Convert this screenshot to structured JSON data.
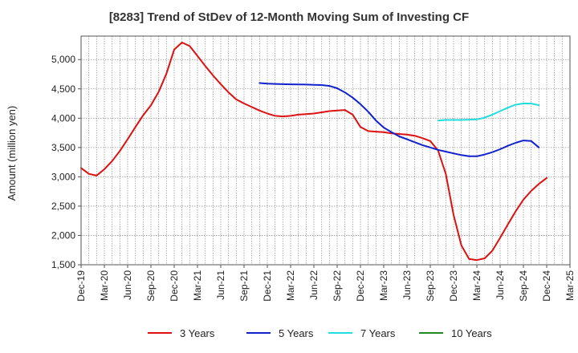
{
  "chart_data": {
    "type": "line",
    "title": "[8283]  Trend of StDev of 12-Month Moving Sum of Investing CF",
    "ylabel": "Amount (million yen)",
    "xlabel": "",
    "ylim": [
      1500,
      5400
    ],
    "y_ticks": [
      "1,500",
      "2,000",
      "2,500",
      "3,000",
      "3,500",
      "4,000",
      "4,500",
      "5,000"
    ],
    "y_tick_values": [
      1500,
      2000,
      2500,
      3000,
      3500,
      4000,
      4500,
      5000
    ],
    "x_ticks": [
      "Dec-19",
      "Mar-20",
      "Jun-20",
      "Sep-20",
      "Dec-20",
      "Mar-21",
      "Jun-21",
      "Sep-21",
      "Dec-21",
      "Mar-22",
      "Jun-22",
      "Sep-22",
      "Dec-22",
      "Mar-23",
      "Jun-23",
      "Sep-23",
      "Dec-23",
      "Mar-24",
      "Jun-24",
      "Sep-24",
      "Dec-24",
      "Mar-25"
    ],
    "grid": true,
    "legend_position": "bottom",
    "series": [
      {
        "name": "3 Years",
        "color": "#dd1111",
        "values": [
          3150,
          3050,
          3020,
          3130,
          3270,
          3440,
          3640,
          3850,
          4050,
          4220,
          4450,
          4760,
          5170,
          5290,
          5230,
          5060,
          4890,
          4730,
          4580,
          4440,
          4320,
          4250,
          4190,
          4130,
          4080,
          4040,
          4030,
          4040,
          4060,
          4070,
          4080,
          4100,
          4120,
          4130,
          4140,
          4060,
          3850,
          3780,
          3770,
          3760,
          3740,
          3730,
          3720,
          3700,
          3660,
          3610,
          3450,
          3050,
          2350,
          1830,
          1600,
          1580,
          1610,
          1740,
          1960,
          2190,
          2410,
          2610,
          2760,
          2880,
          2980
        ]
      },
      {
        "name": "5 Years",
        "color": "#1122cc",
        "values": [
          null,
          null,
          null,
          null,
          null,
          null,
          null,
          null,
          null,
          null,
          null,
          null,
          null,
          null,
          null,
          null,
          null,
          null,
          null,
          null,
          null,
          null,
          null,
          4600,
          4590,
          4585,
          4580,
          4578,
          4575,
          4573,
          4570,
          4565,
          4550,
          4510,
          4440,
          4350,
          4240,
          4110,
          3960,
          3840,
          3760,
          3690,
          3640,
          3590,
          3540,
          3500,
          3460,
          3430,
          3400,
          3370,
          3350,
          3350,
          3380,
          3420,
          3470,
          3530,
          3580,
          3620,
          3610,
          3500
        ]
      },
      {
        "name": "7 Years",
        "color": "#22dddd",
        "values": [
          null,
          null,
          null,
          null,
          null,
          null,
          null,
          null,
          null,
          null,
          null,
          null,
          null,
          null,
          null,
          null,
          null,
          null,
          null,
          null,
          null,
          null,
          null,
          null,
          null,
          null,
          null,
          null,
          null,
          null,
          null,
          null,
          null,
          null,
          null,
          null,
          null,
          null,
          null,
          null,
          null,
          null,
          null,
          null,
          null,
          null,
          3960,
          3970,
          3970,
          3970,
          3975,
          3980,
          4010,
          4060,
          4120,
          4180,
          4230,
          4250,
          4250,
          4220
        ]
      },
      {
        "name": "10 Years",
        "color": "#228822",
        "values": []
      }
    ]
  }
}
